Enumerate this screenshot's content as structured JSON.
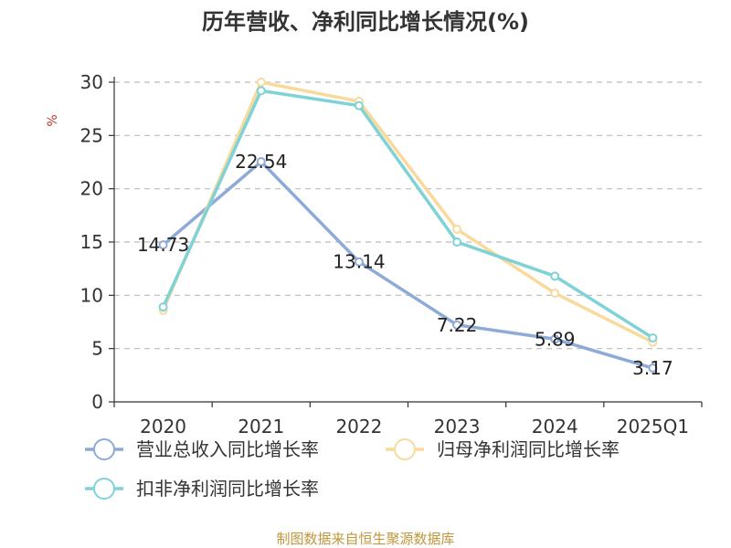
{
  "chart_data": {
    "type": "line",
    "title": "历年营收、净利同比增长情况(%)",
    "ylabel": "%",
    "categories": [
      "2020",
      "2021",
      "2022",
      "2023",
      "2024",
      "2025Q1"
    ],
    "ylim": [
      0,
      30
    ],
    "yticks": [
      0,
      5,
      10,
      15,
      20,
      25,
      30
    ],
    "grid": true,
    "legend_position": "bottom",
    "series": [
      {
        "name": "营业总收入同比增长率",
        "color": "#8eaad6",
        "show_labels": true,
        "values": [
          14.73,
          22.54,
          13.14,
          7.22,
          5.89,
          3.17
        ],
        "labels": [
          "14.73",
          "22.54",
          "13.14",
          "7.22",
          "5.89",
          "3.17"
        ]
      },
      {
        "name": "归母净利润同比增长率",
        "color": "#f8da9c",
        "show_labels": false,
        "values": [
          8.6,
          30.0,
          28.2,
          16.2,
          10.2,
          5.6
        ]
      },
      {
        "name": "扣非净利润同比增长率",
        "color": "#7fd2d6",
        "show_labels": false,
        "values": [
          8.9,
          29.2,
          27.8,
          15.0,
          11.8,
          6.0
        ]
      }
    ],
    "source": "制图数据来自恒生聚源数据库"
  }
}
